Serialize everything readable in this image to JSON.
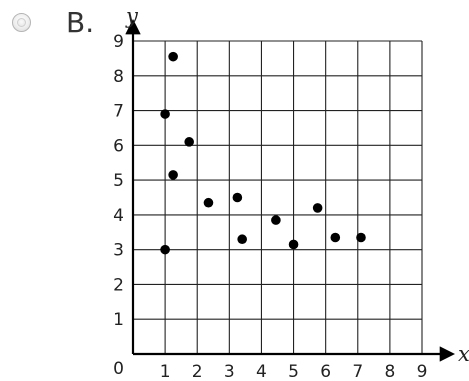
{
  "option": {
    "letter": "B."
  },
  "chart_data": {
    "type": "scatter",
    "title": "",
    "xlabel": "x",
    "ylabel": "y",
    "xlim": [
      0,
      9
    ],
    "ylim": [
      0,
      9
    ],
    "x_ticks": [
      1,
      2,
      3,
      4,
      5,
      6,
      7,
      8,
      9
    ],
    "y_ticks": [
      1,
      2,
      3,
      4,
      5,
      6,
      7,
      8,
      9
    ],
    "origin_label": "0",
    "grid": true,
    "points": [
      {
        "x": 1.0,
        "y": 3.0
      },
      {
        "x": 1.0,
        "y": 6.9
      },
      {
        "x": 1.25,
        "y": 5.15
      },
      {
        "x": 1.25,
        "y": 8.55
      },
      {
        "x": 1.75,
        "y": 6.1
      },
      {
        "x": 2.35,
        "y": 4.35
      },
      {
        "x": 3.25,
        "y": 4.5
      },
      {
        "x": 3.4,
        "y": 3.3
      },
      {
        "x": 4.45,
        "y": 3.85
      },
      {
        "x": 5.0,
        "y": 3.15
      },
      {
        "x": 5.75,
        "y": 4.2
      },
      {
        "x": 6.3,
        "y": 3.35
      },
      {
        "x": 7.1,
        "y": 3.35
      }
    ],
    "colors": {
      "axis": "#000000",
      "grid": "#222222",
      "point": "#000000"
    }
  }
}
